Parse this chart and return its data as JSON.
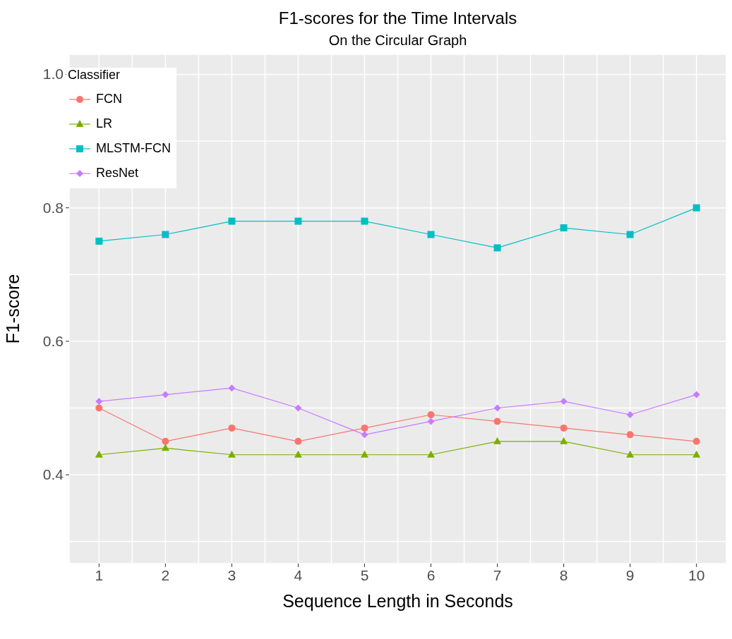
{
  "chart_data": {
    "type": "line",
    "title": "F1-scores for the Time Intervals",
    "subtitle": "On the Circular Graph",
    "xlabel": "Sequence Length in Seconds",
    "ylabel": "F1-score",
    "legend_title": "Classifier",
    "legend": "top left",
    "grid": true,
    "x": [
      1,
      2,
      3,
      4,
      5,
      6,
      7,
      8,
      9,
      10
    ],
    "xlim": [
      0.55,
      10.45
    ],
    "xticks": [
      1,
      {
        "value": 1.5,
        "label": null
      },
      2,
      {
        "value": 2.5,
        "label": null
      },
      3,
      {
        "value": 3.5,
        "label": null
      },
      4,
      {
        "value": 4.5,
        "label": null
      },
      5,
      {
        "value": 5.5,
        "label": null
      },
      6,
      {
        "value": 6.5,
        "label": null
      },
      7,
      {
        "value": 7.5,
        "label": null
      },
      8,
      {
        "value": 8.5,
        "label": null
      },
      9,
      {
        "value": 9.5,
        "label": null
      },
      10
    ],
    "ylim": [
      0.267,
      1.03
    ],
    "yticks": [
      {
        "value": 0.3,
        "label": null
      },
      {
        "value": 0.4,
        "label": "0.4"
      },
      {
        "value": 0.5,
        "label": null
      },
      {
        "value": 0.6,
        "label": "0.6"
      },
      {
        "value": 0.7,
        "label": null
      },
      {
        "value": 0.8,
        "label": "0.8"
      },
      {
        "value": 0.9,
        "label": null
      },
      {
        "value": 1.0,
        "label": "1.0"
      }
    ],
    "series": [
      {
        "name": "FCN",
        "color": "#f8766d",
        "marker": "circle",
        "values": [
          0.5,
          0.45,
          0.47,
          0.45,
          0.47,
          0.49,
          0.48,
          0.47,
          0.46,
          0.45
        ]
      },
      {
        "name": "LR",
        "color": "#7cae00",
        "marker": "triangle",
        "values": [
          0.43,
          0.44,
          0.43,
          0.43,
          0.43,
          0.43,
          0.45,
          0.45,
          0.43,
          0.43
        ]
      },
      {
        "name": "MLSTM-FCN",
        "color": "#00bfc4",
        "marker": "square",
        "values": [
          0.75,
          0.76,
          0.78,
          0.78,
          0.78,
          0.76,
          0.74,
          0.77,
          0.76,
          0.8
        ]
      },
      {
        "name": "ResNet",
        "color": "#c77cff",
        "marker": "diamond",
        "values": [
          0.51,
          0.52,
          0.53,
          0.5,
          0.46,
          0.48,
          0.5,
          0.51,
          0.49,
          0.52
        ]
      }
    ]
  }
}
